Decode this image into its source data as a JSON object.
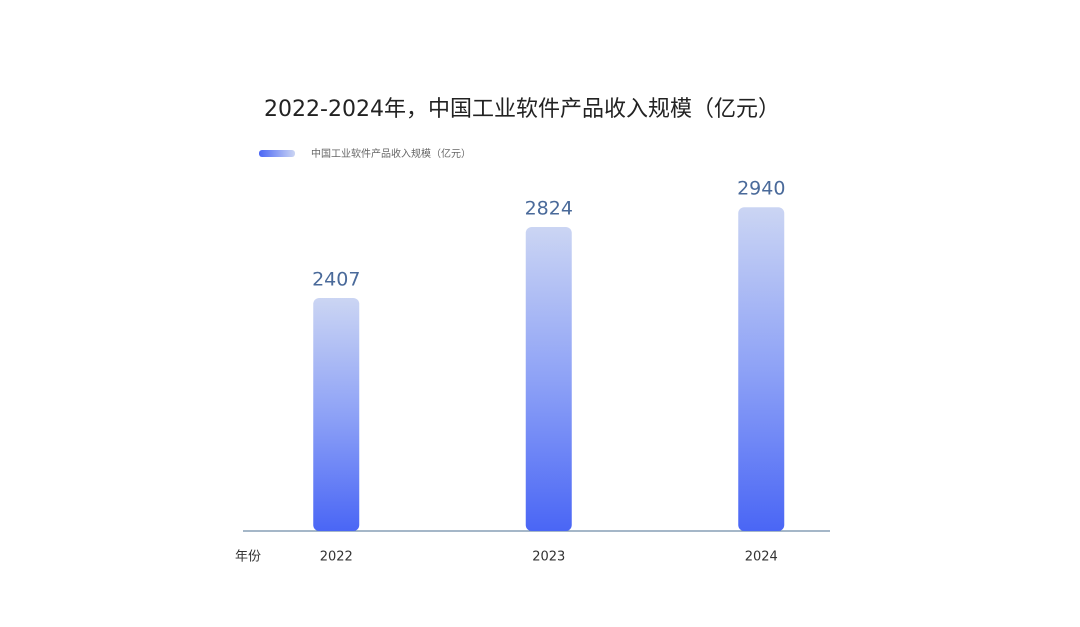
{
  "chart_data": {
    "type": "bar",
    "title": "2022-2024年，中国工业软件产品收入规模（亿元）",
    "x_label": "年份",
    "categories": [
      "2022",
      "2023",
      "2024"
    ],
    "series": [
      {
        "name": "中国工业软件产品收入规模（亿元）",
        "color": "#4a66f5",
        "values": [
          2407,
          2824,
          2940
        ]
      }
    ],
    "ylim": [
      1040,
      3000
    ]
  }
}
